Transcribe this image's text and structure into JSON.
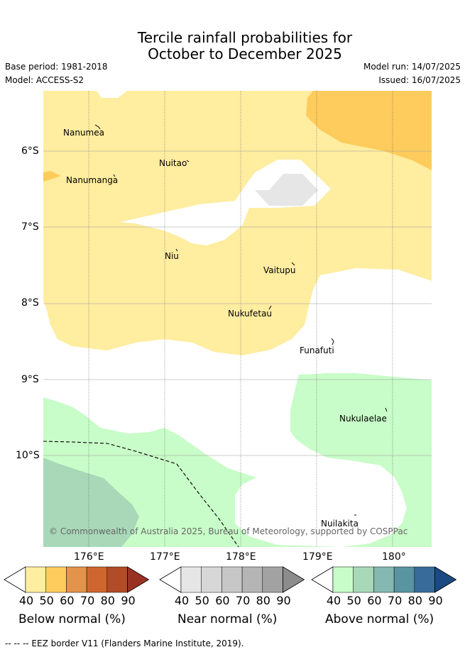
{
  "title": {
    "line1": "Tercile rainfall probabilities for",
    "line2": "October to December 2025"
  },
  "meta": {
    "base_period": "Base period: 1981-2018",
    "model": "Model: ACCESS-S2",
    "model_run": "Model run: 14/07/2025",
    "issued": "Issued: 16/07/2025"
  },
  "map": {
    "places": [
      "Nanumea",
      "Nuitao",
      "Nanumanga",
      "Niu",
      "Vaitupu",
      "Nukufetau",
      "Funafuti",
      "Nukulaelae",
      "Nuilakita"
    ],
    "lat_ticks": [
      "6°S",
      "7°S",
      "8°S",
      "9°S",
      "10°S"
    ],
    "lon_ticks": [
      "176°E",
      "177°E",
      "178°E",
      "179°E",
      "180°"
    ],
    "copyright": "© Commonwealth of Australia 2025, Bureau of Meteorology, supported by COSPPac"
  },
  "legend": {
    "below": {
      "label": "Below normal (%)",
      "ticks": [
        "40",
        "50",
        "60",
        "70",
        "80",
        "90"
      ],
      "colors": [
        "#ffffff",
        "#ffeda0",
        "#fecc5c",
        "#e3944a",
        "#d0662f",
        "#b14c28",
        "#9a3224"
      ]
    },
    "near": {
      "label": "Near normal (%)",
      "ticks": [
        "40",
        "50",
        "60",
        "70",
        "80",
        "90"
      ],
      "colors": [
        "#ffffff",
        "#e6e6e6",
        "#d7d7d7",
        "#c7c7c7",
        "#b5b5b5",
        "#a2a2a2",
        "#8c8c8c"
      ]
    },
    "above": {
      "label": "Above normal (%)",
      "ticks": [
        "40",
        "50",
        "60",
        "70",
        "80",
        "90"
      ],
      "colors": [
        "#ffffff",
        "#c8fcc8",
        "#a8d8b8",
        "#84b8b0",
        "#5a94a0",
        "#386b9a",
        "#1a4a80"
      ]
    }
  },
  "footer": "--  --  -- EEZ border V11 (Flanders Marine Institute, 2019)."
}
